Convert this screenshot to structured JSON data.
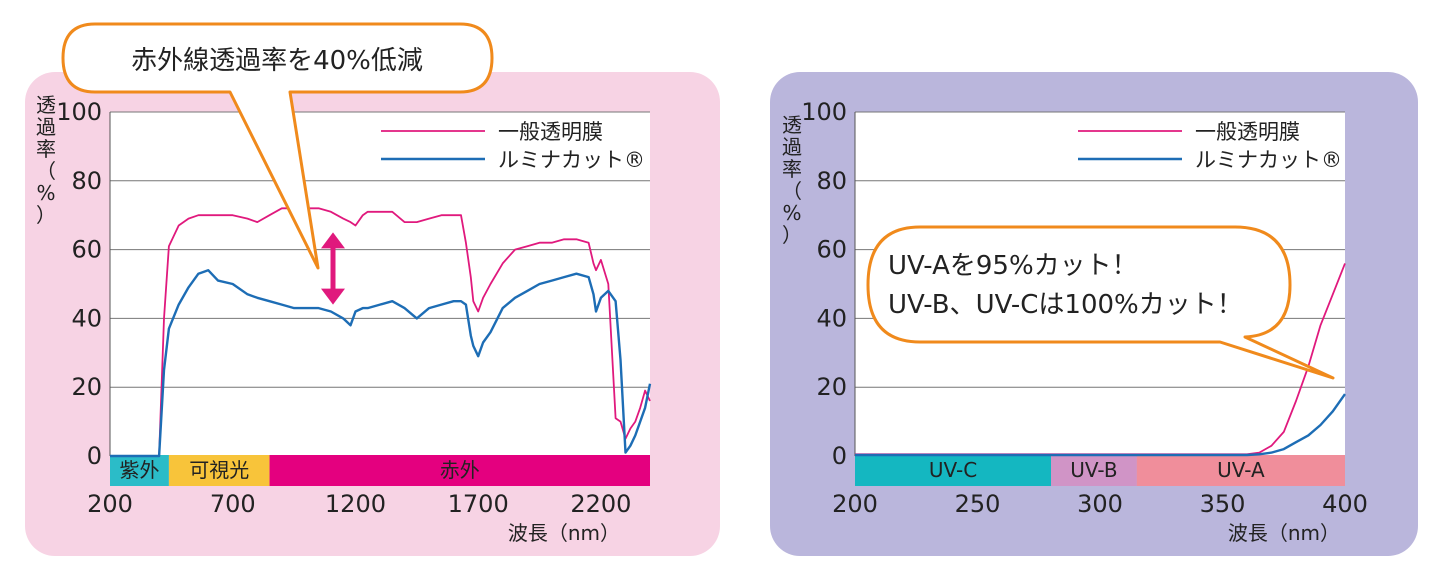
{
  "chart_data": [
    {
      "type": "line",
      "panel_color": "#f7d3e4",
      "xlim": [
        200,
        2400
      ],
      "ylim": [
        0,
        100
      ],
      "yticks": [
        "0",
        "20",
        "40",
        "60",
        "80",
        "100"
      ],
      "xticks": [
        "200",
        "700",
        "1200",
        "1700",
        "2200"
      ],
      "xlabel": "波長（nm）",
      "ylabel": "透過率（%）",
      "grid": true,
      "legend_position": "top-right",
      "callout": "赤外線透過率を40%低減",
      "bands": [
        {
          "label": "紫外",
          "from": 200,
          "to": 440,
          "color": "#2bbcc8"
        },
        {
          "label": "可視光",
          "from": 440,
          "to": 850,
          "color": "#f8c43a"
        },
        {
          "label": "赤外",
          "from": 850,
          "to": 2400,
          "color": "#e4007f"
        }
      ],
      "series": [
        {
          "name": "一般透明膜",
          "color": "#e0197d",
          "x": [
            200,
            380,
            400,
            420,
            440,
            480,
            520,
            560,
            600,
            640,
            700,
            760,
            800,
            850,
            900,
            950,
            1000,
            1050,
            1100,
            1150,
            1180,
            1200,
            1230,
            1250,
            1300,
            1350,
            1400,
            1450,
            1500,
            1550,
            1600,
            1630,
            1650,
            1670,
            1680,
            1700,
            1720,
            1750,
            1800,
            1850,
            1900,
            1950,
            2000,
            2050,
            2100,
            2150,
            2170,
            2180,
            2200,
            2230,
            2260,
            2280,
            2300,
            2320,
            2340,
            2360,
            2380,
            2400
          ],
          "y": [
            0,
            0,
            0,
            40,
            61,
            67,
            69,
            70,
            70,
            70,
            70,
            69,
            68,
            70,
            72,
            72,
            72,
            72,
            71,
            69,
            68,
            67,
            70,
            71,
            71,
            71,
            68,
            68,
            69,
            70,
            70,
            70,
            62,
            52,
            45,
            42,
            46,
            50,
            56,
            60,
            61,
            62,
            62,
            63,
            63,
            62,
            56,
            54,
            57,
            50,
            11,
            10,
            5,
            8,
            10,
            14,
            19,
            16
          ]
        },
        {
          "name": "ルミナカット®",
          "color": "#1d6db5",
          "x": [
            200,
            380,
            400,
            420,
            440,
            480,
            520,
            560,
            600,
            640,
            700,
            760,
            800,
            850,
            900,
            950,
            1000,
            1050,
            1100,
            1150,
            1180,
            1200,
            1230,
            1250,
            1300,
            1350,
            1400,
            1450,
            1500,
            1550,
            1600,
            1630,
            1650,
            1670,
            1680,
            1700,
            1720,
            1750,
            1800,
            1850,
            1900,
            1950,
            2000,
            2050,
            2100,
            2150,
            2170,
            2180,
            2200,
            2230,
            2260,
            2280,
            2300,
            2320,
            2340,
            2360,
            2380,
            2400
          ],
          "y": [
            0,
            0,
            0,
            25,
            37,
            44,
            49,
            53,
            54,
            51,
            50,
            47,
            46,
            45,
            44,
            43,
            43,
            43,
            42,
            40,
            38,
            42,
            43,
            43,
            44,
            45,
            43,
            40,
            43,
            44,
            45,
            45,
            44,
            35,
            32,
            29,
            33,
            36,
            43,
            46,
            48,
            50,
            51,
            52,
            53,
            52,
            47,
            42,
            46,
            48,
            45,
            28,
            1,
            3,
            6,
            10,
            14,
            21
          ]
        }
      ]
    },
    {
      "type": "line",
      "panel_color": "#bab6dc",
      "xlim": [
        200,
        400
      ],
      "ylim": [
        0,
        100
      ],
      "yticks": [
        "0",
        "20",
        "40",
        "60",
        "80",
        "100"
      ],
      "xticks": [
        "200",
        "250",
        "300",
        "350",
        "400"
      ],
      "xlabel": "波長（nm）",
      "ylabel": "透過率（%）",
      "grid": true,
      "legend_position": "top-right",
      "callout_line1": "UV-Aを95%カット！",
      "callout_line2": "UV-B、UV-Cは100%カット！",
      "bands": [
        {
          "label": "UV-C",
          "from": 200,
          "to": 280,
          "color": "#14b7c1"
        },
        {
          "label": "UV-B",
          "from": 280,
          "to": 315,
          "color": "#d094c6"
        },
        {
          "label": "UV-A",
          "from": 315,
          "to": 400,
          "color": "#f08e9b"
        }
      ],
      "series": [
        {
          "name": "一般透明膜",
          "color": "#e0197d",
          "x": [
            200,
            300,
            360,
            365,
            370,
            375,
            380,
            385,
            390,
            395,
            400
          ],
          "y": [
            0.5,
            0.5,
            0.5,
            1,
            3,
            7,
            16,
            26,
            38,
            47,
            56
          ]
        },
        {
          "name": "ルミナカット®",
          "color": "#1d6db5",
          "x": [
            200,
            300,
            360,
            365,
            370,
            375,
            380,
            385,
            390,
            395,
            400
          ],
          "y": [
            0.3,
            0.3,
            0.3,
            0.5,
            1,
            2,
            4,
            6,
            9,
            13,
            18
          ]
        }
      ]
    }
  ]
}
